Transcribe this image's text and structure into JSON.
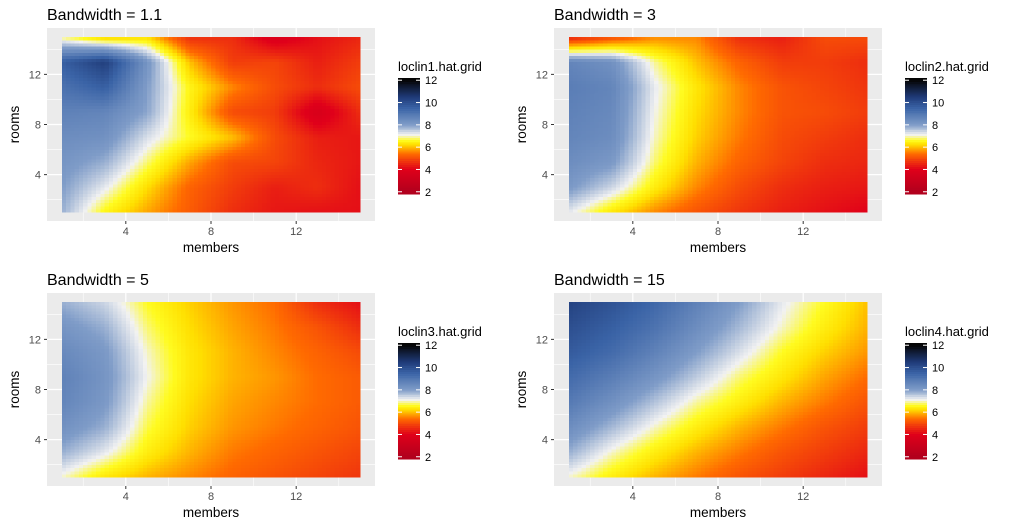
{
  "figure": {
    "description_type": "four-panel heatmap grid of local linear regression fits",
    "colors": {
      "panel_background": "#ebebeb",
      "grid_line": "#ffffff",
      "scale": [
        {
          "v": 2,
          "color": "#b2001d"
        },
        {
          "v": 4,
          "color": "#e0001a"
        },
        {
          "v": 5.4,
          "color": "#ff6a00"
        },
        {
          "v": 6.2,
          "color": "#ffdf00"
        },
        {
          "v": 6.6,
          "color": "#fffb20"
        },
        {
          "v": 7.1,
          "color": "#f2f2f2"
        },
        {
          "v": 8,
          "color": "#7f9cc8"
        },
        {
          "v": 9.5,
          "color": "#3a63a6"
        },
        {
          "v": 10.5,
          "color": "#1f3a78"
        },
        {
          "v": 12,
          "color": "#050505"
        }
      ]
    }
  },
  "chart_data": [
    {
      "type": "heatmap",
      "title": "Bandwidth = 1.1",
      "xlabel": "members",
      "ylabel": "rooms",
      "xlim": [
        1,
        15
      ],
      "ylim": [
        1,
        15
      ],
      "xticks": [
        4,
        8,
        12
      ],
      "yticks": [
        4,
        8,
        12
      ],
      "xtick_labels": [
        "4",
        "8",
        "12"
      ],
      "ytick_labels": [
        "4",
        "8",
        "12"
      ],
      "grid": true,
      "legend": {
        "title": "loclin1.hat.grid",
        "placement": "right",
        "ticks": [
          2,
          4,
          6,
          8,
          10,
          12
        ],
        "tick_labels": [
          "2",
          "4",
          "6",
          "8",
          "10",
          "12"
        ],
        "range": [
          1.8,
          12.2
        ]
      },
      "x_grid": [
        1,
        3,
        5,
        7,
        9,
        11,
        13,
        15
      ],
      "y_grid": [
        1,
        3,
        5,
        7,
        9,
        11,
        13,
        15
      ],
      "z": [
        [
          7.8,
          6.5,
          5.8,
          5.2,
          4.6,
          4.3,
          4.2,
          4.2
        ],
        [
          8.0,
          7.2,
          6.2,
          5.3,
          4.8,
          4.4,
          4.6,
          4.2
        ],
        [
          8.2,
          7.8,
          6.8,
          5.8,
          5.0,
          4.9,
          4.5,
          4.3
        ],
        [
          8.4,
          8.3,
          7.3,
          6.6,
          6.0,
          5.0,
          4.4,
          4.3
        ],
        [
          8.7,
          8.6,
          7.9,
          6.4,
          5.0,
          4.8,
          3.6,
          4.6
        ],
        [
          9.1,
          9.6,
          8.0,
          6.5,
          5.6,
          5.0,
          4.6,
          5.0
        ],
        [
          9.6,
          10.4,
          8.2,
          6.0,
          4.8,
          4.9,
          4.4,
          4.8
        ],
        [
          6.8,
          6.0,
          6.2,
          4.6,
          4.6,
          3.7,
          4.2,
          4.5
        ]
      ]
    },
    {
      "type": "heatmap",
      "title": "Bandwidth = 3",
      "xlabel": "members",
      "ylabel": "rooms",
      "xlim": [
        1,
        15
      ],
      "ylim": [
        1,
        15
      ],
      "xticks": [
        4,
        8,
        12
      ],
      "yticks": [
        4,
        8,
        12
      ],
      "xtick_labels": [
        "4",
        "8",
        "12"
      ],
      "ytick_labels": [
        "4",
        "8",
        "12"
      ],
      "grid": true,
      "legend": {
        "title": "loclin2.hat.grid",
        "placement": "right",
        "ticks": [
          2,
          4,
          6,
          8,
          10,
          12
        ],
        "tick_labels": [
          "2",
          "4",
          "6",
          "8",
          "10",
          "12"
        ],
        "range": [
          1.8,
          12.2
        ]
      },
      "x_grid": [
        1,
        3,
        5,
        7,
        9,
        11,
        13,
        15
      ],
      "y_grid": [
        1,
        3,
        5,
        7,
        9,
        11,
        13,
        15
      ],
      "z": [
        [
          7.2,
          6.3,
          5.6,
          5.1,
          4.7,
          4.4,
          4.2,
          4.0
        ],
        [
          8.1,
          7.4,
          6.4,
          5.6,
          5.0,
          4.6,
          4.4,
          4.3
        ],
        [
          8.4,
          8.1,
          6.8,
          5.9,
          5.3,
          4.9,
          4.6,
          4.5
        ],
        [
          8.6,
          8.4,
          7.0,
          6.1,
          5.5,
          5.0,
          4.8,
          4.6
        ],
        [
          8.7,
          8.5,
          7.1,
          6.2,
          5.6,
          5.1,
          5.0,
          4.8
        ],
        [
          8.8,
          8.6,
          7.2,
          6.3,
          5.6,
          5.1,
          4.9,
          4.7
        ],
        [
          8.6,
          8.3,
          6.9,
          6.0,
          5.3,
          4.8,
          4.8,
          4.6
        ],
        [
          4.4,
          5.0,
          5.6,
          5.6,
          4.6,
          4.4,
          5.0,
          5.0
        ]
      ]
    },
    {
      "type": "heatmap",
      "title": "Bandwidth = 5",
      "xlabel": "members",
      "ylabel": "rooms",
      "xlim": [
        1,
        15
      ],
      "ylim": [
        1,
        15
      ],
      "xticks": [
        4,
        8,
        12
      ],
      "yticks": [
        4,
        8,
        12
      ],
      "xtick_labels": [
        "4",
        "8",
        "12"
      ],
      "ytick_labels": [
        "4",
        "8",
        "12"
      ],
      "grid": true,
      "legend": {
        "title": "loclin3.hat.grid",
        "placement": "right",
        "ticks": [
          2,
          4,
          6,
          8,
          10,
          12
        ],
        "tick_labels": [
          "2",
          "4",
          "6",
          "8",
          "10",
          "12"
        ],
        "range": [
          1.8,
          12.2
        ]
      },
      "x_grid": [
        1,
        3,
        5,
        7,
        9,
        11,
        13,
        15
      ],
      "y_grid": [
        1,
        3,
        5,
        7,
        9,
        11,
        13,
        15
      ],
      "z": [
        [
          7.0,
          6.3,
          5.9,
          5.6,
          5.3,
          5.1,
          4.9,
          4.7
        ],
        [
          7.8,
          7.2,
          6.4,
          5.9,
          5.5,
          5.3,
          5.1,
          4.9
        ],
        [
          8.3,
          7.8,
          6.7,
          6.1,
          5.7,
          5.5,
          5.3,
          5.1
        ],
        [
          8.6,
          8.1,
          6.9,
          6.2,
          5.8,
          5.6,
          5.4,
          5.2
        ],
        [
          8.7,
          8.2,
          7.1,
          6.3,
          5.9,
          5.7,
          5.4,
          5.2
        ],
        [
          8.5,
          8.1,
          7.0,
          6.3,
          5.9,
          5.6,
          5.3,
          5.0
        ],
        [
          8.2,
          7.8,
          6.8,
          6.2,
          5.8,
          5.5,
          5.1,
          4.6
        ],
        [
          7.8,
          7.4,
          6.6,
          6.1,
          5.7,
          5.4,
          4.6,
          4.2
        ]
      ]
    },
    {
      "type": "heatmap",
      "title": "Bandwidth = 15",
      "xlabel": "members",
      "ylabel": "rooms",
      "xlim": [
        1,
        15
      ],
      "ylim": [
        1,
        15
      ],
      "xticks": [
        4,
        8,
        12
      ],
      "yticks": [
        4,
        8,
        12
      ],
      "xtick_labels": [
        "4",
        "8",
        "12"
      ],
      "ytick_labels": [
        "4",
        "8",
        "12"
      ],
      "grid": true,
      "legend": {
        "title": "loclin4.hat.grid",
        "placement": "right",
        "ticks": [
          2,
          4,
          6,
          8,
          10,
          12
        ],
        "tick_labels": [
          "2",
          "4",
          "6",
          "8",
          "10",
          "12"
        ],
        "range": [
          1.8,
          12.2
        ]
      },
      "x_grid": [
        1,
        3,
        5,
        7,
        9,
        11,
        13,
        15
      ],
      "y_grid": [
        1,
        3,
        5,
        7,
        9,
        11,
        13,
        15
      ],
      "z": [
        [
          7.0,
          6.4,
          5.9,
          5.5,
          5.1,
          4.8,
          4.5,
          4.2
        ],
        [
          7.8,
          7.0,
          6.4,
          5.9,
          5.5,
          5.1,
          4.8,
          4.5
        ],
        [
          8.4,
          7.7,
          7.0,
          6.4,
          5.9,
          5.5,
          5.1,
          4.8
        ],
        [
          8.9,
          8.3,
          7.6,
          6.9,
          6.4,
          5.9,
          5.5,
          5.1
        ],
        [
          9.3,
          8.8,
          8.2,
          7.5,
          6.8,
          6.3,
          5.8,
          5.4
        ],
        [
          9.7,
          9.3,
          8.7,
          8.0,
          7.3,
          6.6,
          6.1,
          5.7
        ],
        [
          10.0,
          9.6,
          9.1,
          8.4,
          7.7,
          7.0,
          6.4,
          5.9
        ],
        [
          10.3,
          9.9,
          9.4,
          8.7,
          8.0,
          7.2,
          6.6,
          6.0
        ]
      ]
    }
  ]
}
